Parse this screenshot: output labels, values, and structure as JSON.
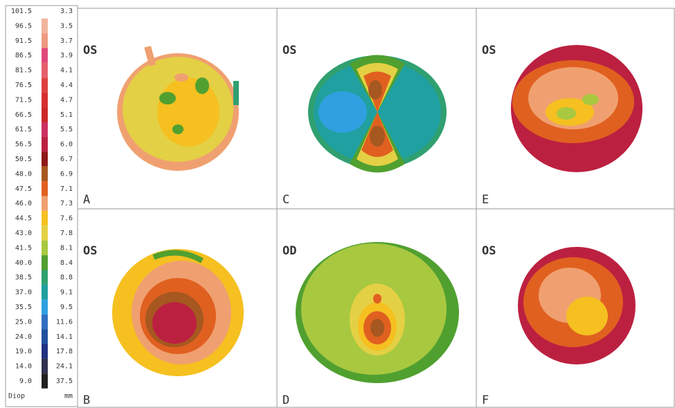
{
  "legend": {
    "rows": [
      {
        "diop": "101.5",
        "mm": "3.3"
      },
      {
        "diop": "96.5",
        "mm": "3.5",
        "color": "#f2b49c"
      },
      {
        "diop": "91.5",
        "mm": "3.7",
        "color": "#ee9a80"
      },
      {
        "diop": "86.5",
        "mm": "3.9",
        "color": "#e0487a"
      },
      {
        "diop": "81.5",
        "mm": "4.1",
        "color": "#e4606a"
      },
      {
        "diop": "76.5",
        "mm": "4.4",
        "color": "#de4040"
      },
      {
        "diop": "71.5",
        "mm": "4.7",
        "color": "#d63030"
      },
      {
        "diop": "66.5",
        "mm": "5.1",
        "color": "#cc2828"
      },
      {
        "diop": "61.5",
        "mm": "5.5",
        "color": "#cc3060"
      },
      {
        "diop": "56.5",
        "mm": "6.0",
        "color": "#bc2040"
      },
      {
        "diop": "50.5",
        "mm": "6.7",
        "color": "#8e1818"
      },
      {
        "diop": "48.0",
        "mm": "6.9",
        "color": "#a65820"
      },
      {
        "diop": "47.5",
        "mm": "7.1",
        "color": "#e06020"
      },
      {
        "diop": "46.0",
        "mm": "7.3",
        "color": "#f0a070"
      },
      {
        "diop": "44.5",
        "mm": "7.6",
        "color": "#f5c020"
      },
      {
        "diop": "43.0",
        "mm": "7.8",
        "color": "#e4d044"
      },
      {
        "diop": "41.5",
        "mm": "8.1",
        "color": "#a8c840"
      },
      {
        "diop": "40.0",
        "mm": "8.4",
        "color": "#50a030"
      },
      {
        "diop": "38.5",
        "mm": "8.8",
        "color": "#30a070"
      },
      {
        "diop": "37.0",
        "mm": "9.1",
        "color": "#20a0a0"
      },
      {
        "diop": "35.5",
        "mm": "9.5",
        "color": "#30a0e0"
      },
      {
        "diop": "25.0",
        "mm": "11.6",
        "color": "#3070c0"
      },
      {
        "diop": "24.0",
        "mm": "14.1",
        "color": "#2050a0"
      },
      {
        "diop": "19.0",
        "mm": "17.8",
        "color": "#203080"
      },
      {
        "diop": "14.0",
        "mm": "24.1",
        "color": "#303050"
      },
      {
        "diop": "9.0",
        "mm": "37.5",
        "color": "#202020"
      }
    ],
    "footer": {
      "diop": "Diop",
      "mm": "mm"
    }
  },
  "panels": [
    {
      "eye": "OS",
      "letter": "A"
    },
    {
      "eye": "OS",
      "letter": "C"
    },
    {
      "eye": "OS",
      "letter": "E"
    },
    {
      "eye": "OS",
      "letter": "B"
    },
    {
      "eye": "OD",
      "letter": "D"
    },
    {
      "eye": "OS",
      "letter": "F"
    }
  ]
}
